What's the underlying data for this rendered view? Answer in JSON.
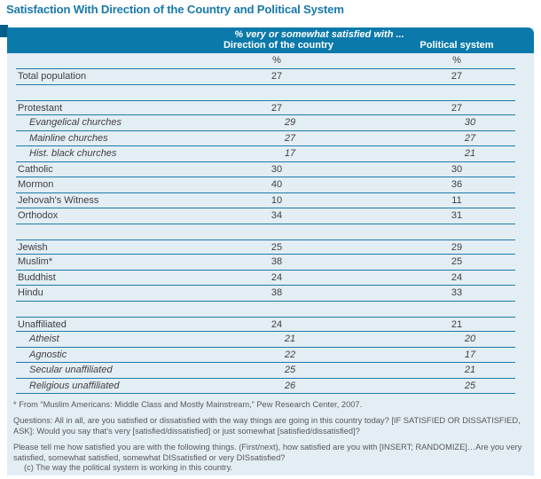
{
  "page_title": "Satisfaction With Direction of the Country and Political System",
  "colors": {
    "title_blue": "#1a79ac",
    "band_blue": "#0b79a9",
    "band_tab_dark": "#065f88",
    "panel_light_blue": "#e3edf4",
    "rule_blue": "#1e7aa9",
    "body_text": "#414042",
    "footnote_text": "#58595b"
  },
  "chart_data": {
    "type": "table",
    "title": "Satisfaction With Direction of the Country and Political System",
    "col_group_label": "% very or somewhat satisfied with ...",
    "columns": [
      "Direction of the country",
      "Political system"
    ],
    "unit": "%",
    "rows": [
      {
        "label": "Total population",
        "values": [
          27,
          27
        ],
        "indent": false,
        "gap_before": false
      },
      {
        "label": "Protestant",
        "values": [
          27,
          27
        ],
        "indent": false,
        "gap_before": true
      },
      {
        "label": "Evangelical churches",
        "values": [
          29,
          30
        ],
        "indent": true,
        "gap_before": false
      },
      {
        "label": "Mainline churches",
        "values": [
          27,
          27
        ],
        "indent": true,
        "gap_before": false
      },
      {
        "label": "Hist. black churches",
        "values": [
          17,
          21
        ],
        "indent": true,
        "gap_before": false
      },
      {
        "label": "Catholic",
        "values": [
          30,
          30
        ],
        "indent": false,
        "gap_before": false
      },
      {
        "label": "Mormon",
        "values": [
          40,
          36
        ],
        "indent": false,
        "gap_before": false
      },
      {
        "label": "Jehovah's Witness",
        "values": [
          10,
          11
        ],
        "indent": false,
        "gap_before": false
      },
      {
        "label": "Orthodox",
        "values": [
          34,
          31
        ],
        "indent": false,
        "gap_before": false
      },
      {
        "label": "Jewish",
        "values": [
          25,
          29
        ],
        "indent": false,
        "gap_before": true
      },
      {
        "label": "Muslim*",
        "values": [
          38,
          25
        ],
        "indent": false,
        "gap_before": false
      },
      {
        "label": "Buddhist",
        "values": [
          24,
          24
        ],
        "indent": false,
        "gap_before": false
      },
      {
        "label": "Hindu",
        "values": [
          38,
          33
        ],
        "indent": false,
        "gap_before": false
      },
      {
        "label": "Unaffiliated",
        "values": [
          24,
          21
        ],
        "indent": false,
        "gap_before": true
      },
      {
        "label": "Atheist",
        "values": [
          21,
          20
        ],
        "indent": true,
        "gap_before": false
      },
      {
        "label": "Agnostic",
        "values": [
          22,
          17
        ],
        "indent": true,
        "gap_before": false
      },
      {
        "label": "Secular unaffiliated",
        "values": [
          25,
          21
        ],
        "indent": true,
        "gap_before": false
      },
      {
        "label": "Religious unaffiliated",
        "values": [
          26,
          25
        ],
        "indent": true,
        "gap_before": false
      }
    ],
    "footnotes": {
      "muslim_source": "* From “Muslim Americans: Middle Class and Mostly Mainstream,” Pew Research Center, 2007.",
      "questions_1": "Questions:  All in all, are you satisfied or dissatisfied with the way things are going in this country today? [IF SATISFIED OR DISSATISFIED, ASK]: Would you say that’s very [satisfied/dissatisfied] or just somewhat [satisfied/dissatisfied]?",
      "questions_2": "Please tell me how satisfied you are with the following things. (First/next), how satisfied are you with [INSERT; RANDOMIZE]…Are you very satisfied, somewhat satisfied, somewhat DISsatisfied or very DISsatisfied?",
      "questions_2_item": "(c) The way the political system is working in this country."
    }
  }
}
